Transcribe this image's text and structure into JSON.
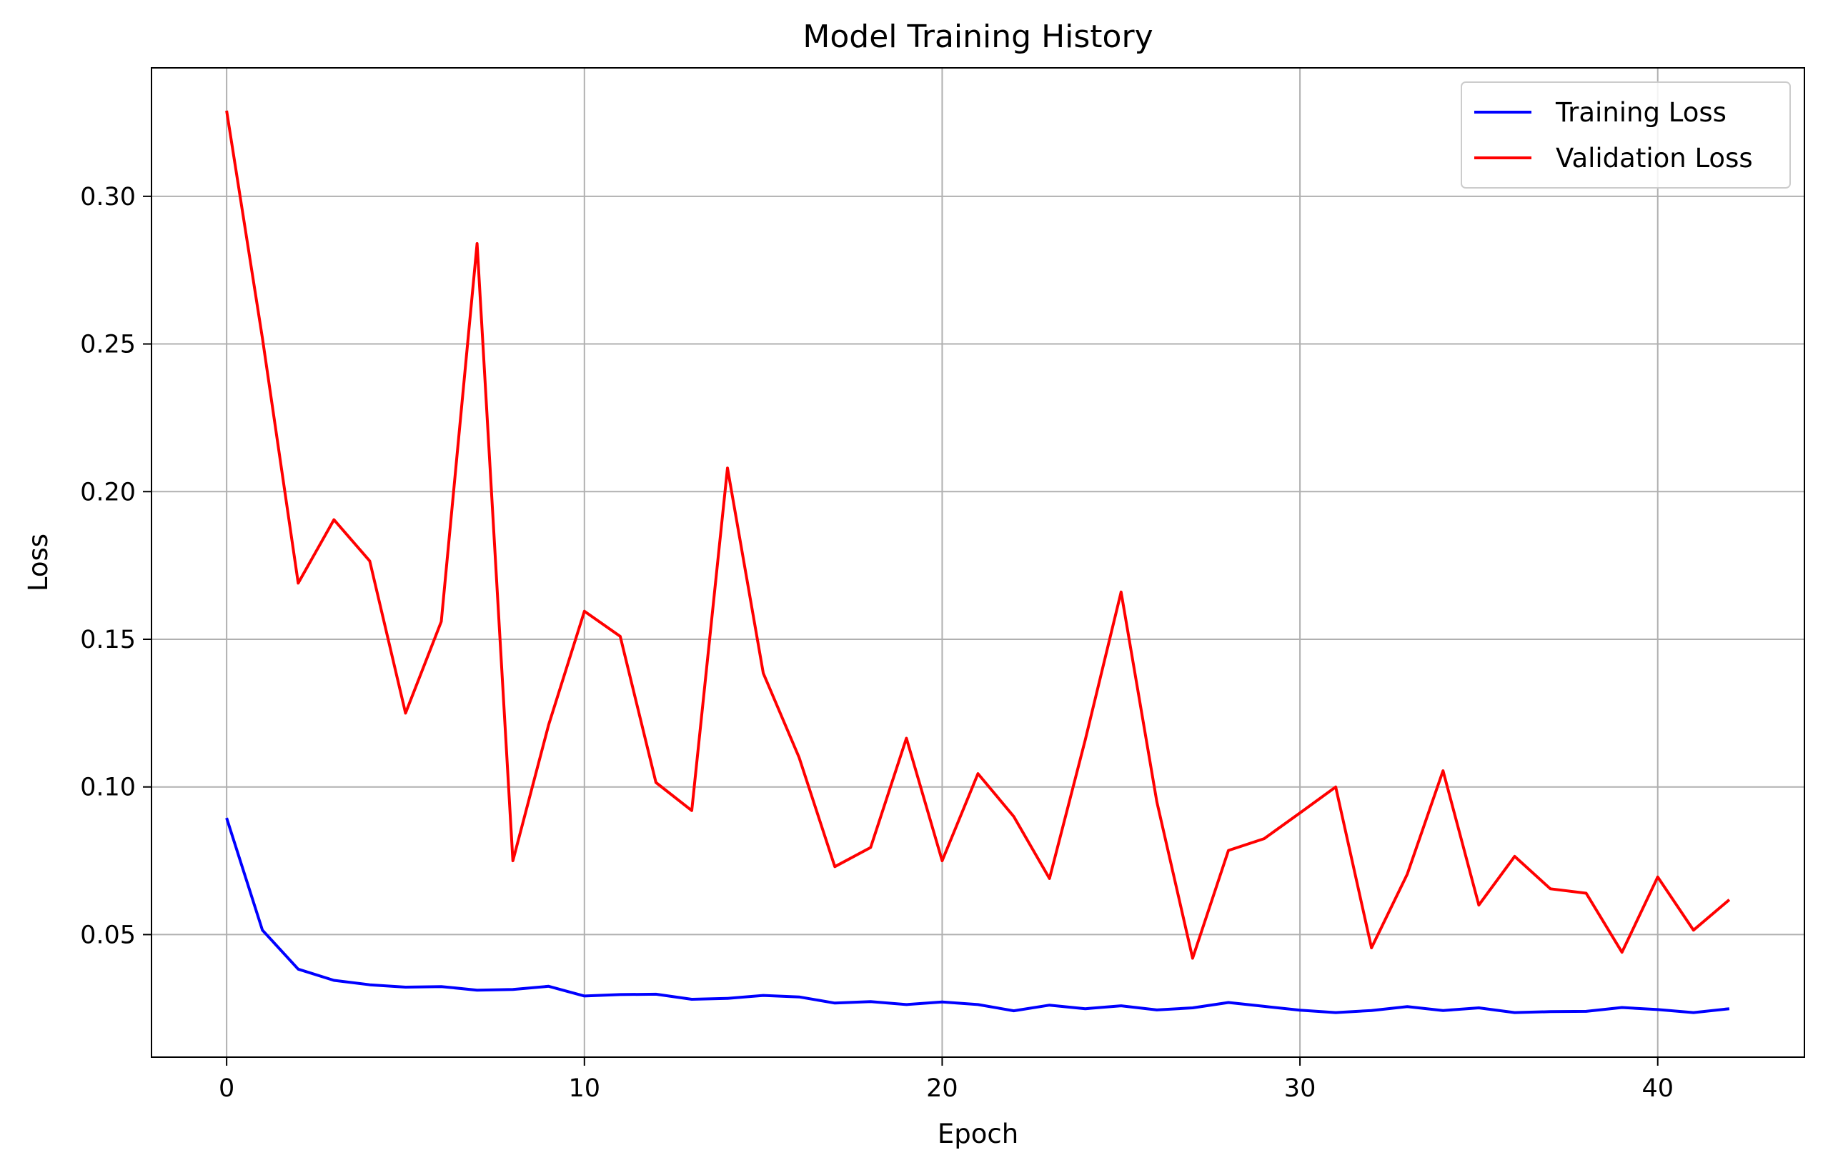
{
  "chart_data": {
    "type": "line",
    "title": "Model Training History",
    "xlabel": "Epoch",
    "ylabel": "Loss",
    "xlim": [
      -2.1,
      44.1
    ],
    "ylim": [
      0.0085,
      0.3435
    ],
    "xticks": [
      0,
      10,
      20,
      30,
      40
    ],
    "xtick_labels": [
      "0",
      "10",
      "20",
      "30",
      "40"
    ],
    "yticks": [
      0.05,
      0.1,
      0.15,
      0.2,
      0.25,
      0.3
    ],
    "ytick_labels": [
      "0.05",
      "0.10",
      "0.15",
      "0.20",
      "0.25",
      "0.30"
    ],
    "grid": true,
    "legend_position": "top-right",
    "x": [
      0,
      1,
      2,
      3,
      4,
      5,
      6,
      7,
      8,
      9,
      10,
      11,
      12,
      13,
      14,
      15,
      16,
      17,
      18,
      19,
      20,
      21,
      22,
      23,
      24,
      25,
      26,
      27,
      28,
      29,
      30,
      31,
      32,
      33,
      34,
      35,
      36,
      37,
      38,
      39,
      40,
      41,
      42
    ],
    "series": [
      {
        "name": "Training Loss",
        "color": "#0000ff",
        "values": [
          0.0895,
          0.0515,
          0.0383,
          0.0345,
          0.033,
          0.0322,
          0.0324,
          0.0312,
          0.0314,
          0.0325,
          0.0292,
          0.0297,
          0.0298,
          0.0281,
          0.0284,
          0.0294,
          0.0289,
          0.0268,
          0.0273,
          0.0263,
          0.0272,
          0.0263,
          0.0242,
          0.0261,
          0.0249,
          0.0259,
          0.0245,
          0.0252,
          0.027,
          0.0257,
          0.0244,
          0.0236,
          0.0243,
          0.0256,
          0.0243,
          0.0252,
          0.0236,
          0.0239,
          0.024,
          0.0253,
          0.0246,
          0.0236,
          0.0249
        ]
      },
      {
        "name": "Validation Loss",
        "color": "#ff0000",
        "values": [
          0.329,
          0.252,
          0.169,
          0.1905,
          0.1765,
          0.125,
          0.156,
          0.284,
          0.075,
          0.121,
          0.1595,
          0.151,
          0.1015,
          0.092,
          0.208,
          0.1385,
          0.11,
          0.073,
          0.0795,
          0.1165,
          0.075,
          0.1045,
          0.09,
          0.069,
          0.116,
          0.166,
          0.095,
          0.042,
          0.0785,
          0.0825,
          0.0912,
          0.1,
          0.0455,
          0.0705,
          0.1055,
          0.06,
          0.0765,
          0.0655,
          0.064,
          0.044,
          0.0695,
          0.0515,
          0.0618
        ]
      }
    ]
  }
}
